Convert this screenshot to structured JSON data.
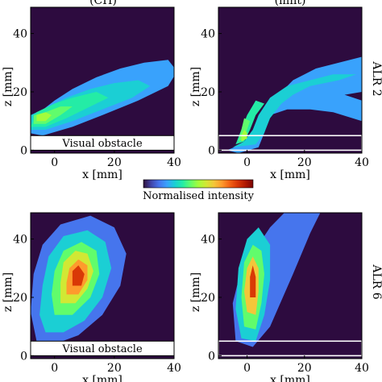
{
  "colors": {
    "background": "#2d0b3f",
    "axis": "#000000",
    "obstacle_fill": "#ffffff",
    "colormap": [
      "#30123b",
      "#4145ab",
      "#4675ed",
      "#39a2fc",
      "#1bcfd4",
      "#24eca6",
      "#61fc6c",
      "#a4fc3b",
      "#d1e834",
      "#f3c63a",
      "#fe9b2d",
      "#f36315",
      "#d93806",
      "#b11901",
      "#7a0403"
    ]
  },
  "figure": {
    "column_titles": [
      "(CH)",
      "(mnt)"
    ],
    "colorbar_label": "Normalised intensity",
    "row_labels": [
      "ALR 2",
      "ALR 6"
    ],
    "obstacle_label": "Visual obstacle"
  },
  "chart_data": [
    {
      "type": "heatmap",
      "panel": "top-left",
      "xlabel": "x [mm]",
      "ylabel": "z [mm]",
      "xlim": [
        -8,
        40
      ],
      "ylim": [
        -1,
        49
      ],
      "xticks": [
        "0",
        "20",
        "40"
      ],
      "yticks": [
        "0",
        "20",
        "40"
      ],
      "obstacle": {
        "label": "Visual obstacle",
        "x": [
          -8,
          40
        ],
        "z": [
          0,
          5
        ]
      },
      "plume": {
        "shape": "elongated",
        "core": [
          -2,
          12
        ],
        "spread_direction": "up-right",
        "peak": 0.45
      },
      "grid": false
    },
    {
      "type": "heatmap",
      "panel": "top-right",
      "xlabel": "x [mm]",
      "ylabel": "z [mm]",
      "xlim": [
        -10,
        40
      ],
      "ylim": [
        -1,
        49
      ],
      "xticks": [
        "0",
        "20",
        "40"
      ],
      "yticks": [
        "0",
        "20",
        "40"
      ],
      "obstacle": {
        "label": "",
        "x": [
          -10,
          40
        ],
        "z": [
          0,
          5
        ]
      },
      "plume": {
        "shape": "jet_deflected",
        "core": [
          0,
          5
        ],
        "spread_direction": "up then right",
        "peak": 0.5
      },
      "grid": false
    },
    {
      "type": "heatmap",
      "panel": "bottom-left",
      "xlabel": "x [mm]",
      "ylabel": "z [mm]",
      "xlim": [
        -8,
        40
      ],
      "ylim": [
        -1,
        49
      ],
      "xticks": [
        "0",
        "20",
        "40"
      ],
      "yticks": [
        "0",
        "20",
        "40"
      ],
      "obstacle": {
        "label": "Visual obstacle",
        "x": [
          -8,
          40
        ],
        "z": [
          0,
          5
        ]
      },
      "plume": {
        "shape": "ellipse",
        "core": [
          8,
          27
        ],
        "spread_direction": "tilted right",
        "peak": 0.9
      },
      "grid": false
    },
    {
      "type": "heatmap",
      "panel": "bottom-right",
      "xlabel": "x [mm]",
      "ylabel": "z [mm]",
      "xlim": [
        -10,
        40
      ],
      "ylim": [
        -1,
        49
      ],
      "xticks": [
        "0",
        "20",
        "40"
      ],
      "yticks": [
        "0",
        "20",
        "40"
      ],
      "obstacle": {
        "label": "",
        "x": [
          -10,
          40
        ],
        "z": [
          0,
          5
        ]
      },
      "plume": {
        "shape": "narrow_column",
        "core": [
          2,
          27
        ],
        "spread_direction": "up",
        "peak": 0.85
      },
      "grid": false
    }
  ]
}
